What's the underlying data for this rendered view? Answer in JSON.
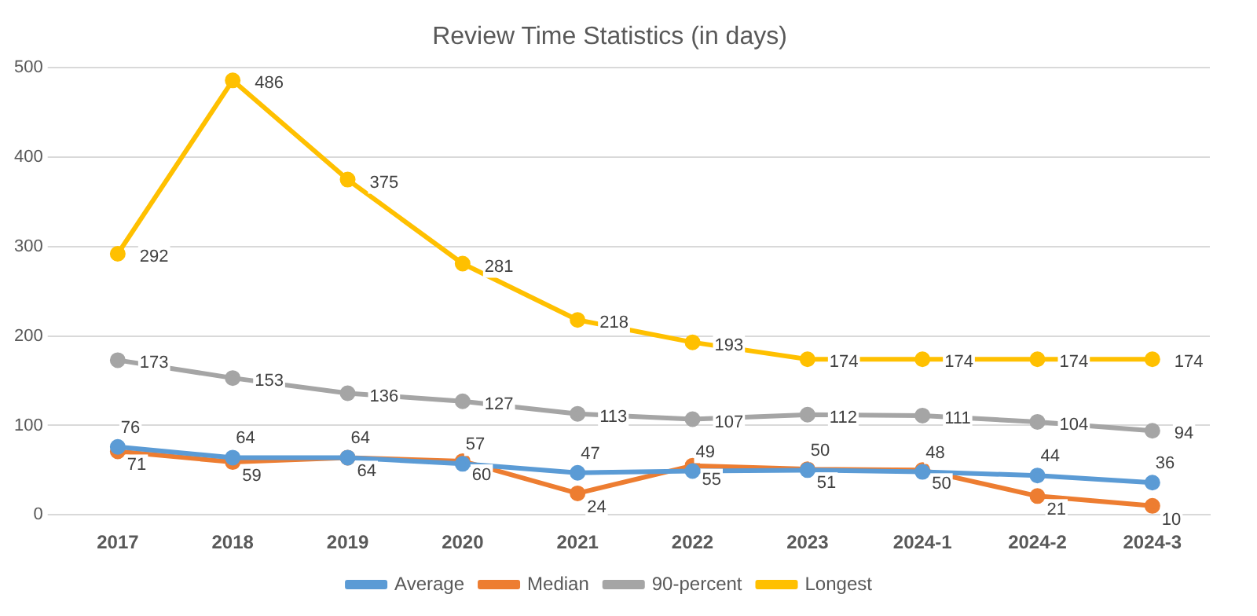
{
  "chart_data": {
    "type": "line",
    "title": "Review Time Statistics (in days)",
    "categories": [
      "2017",
      "2018",
      "2019",
      "2020",
      "2021",
      "2022",
      "2023",
      "2024-1",
      "2024-2",
      "2024-3"
    ],
    "series": [
      {
        "name": "Average",
        "color": "#5b9bd5",
        "values": [
          76,
          64,
          64,
          57,
          47,
          49,
          50,
          48,
          44,
          36
        ]
      },
      {
        "name": "Median",
        "color": "#ed7d31",
        "values": [
          71,
          59,
          64,
          60,
          24,
          55,
          51,
          50,
          21,
          10
        ]
      },
      {
        "name": "90-percent",
        "color": "#a5a5a5",
        "values": [
          173,
          153,
          136,
          127,
          113,
          107,
          112,
          111,
          104,
          94
        ]
      },
      {
        "name": "Longest",
        "color": "#ffc000",
        "values": [
          292,
          486,
          375,
          281,
          218,
          193,
          174,
          174,
          174,
          174
        ]
      }
    ],
    "ylim": [
      0,
      500
    ],
    "yticks": [
      0,
      100,
      200,
      300,
      400,
      500
    ],
    "grid": "y",
    "legend": "bottom",
    "marker": "circle",
    "data_labels": true
  }
}
